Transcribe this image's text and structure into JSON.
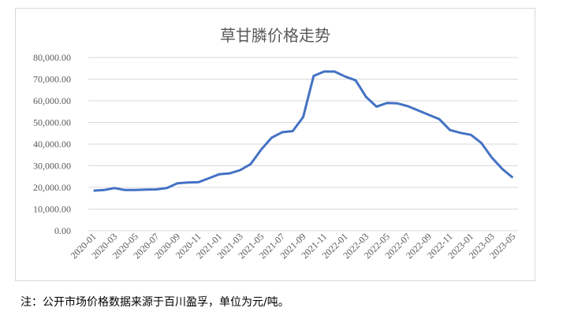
{
  "chart_data": {
    "type": "line",
    "title": "草甘膦价格走势",
    "xlabel": "",
    "ylabel": "",
    "ylim": [
      0,
      80000
    ],
    "yticks": [
      "0.00",
      "10,000.00",
      "20,000.00",
      "30,000.00",
      "40,000.00",
      "50,000.00",
      "60,000.00",
      "70,000.00",
      "80,000.00"
    ],
    "ytick_values": [
      0,
      10000,
      20000,
      30000,
      40000,
      50000,
      60000,
      70000,
      80000
    ],
    "xtick_labels": [
      "2020-01",
      "2020-03",
      "2020-05",
      "2020-07",
      "2020-09",
      "2020-11",
      "2021-01",
      "2021-03",
      "2021-05",
      "2021-07",
      "2021-09",
      "2021-11",
      "2022-01",
      "2022-03",
      "2022-05",
      "2022-07",
      "2022-09",
      "2022-11",
      "2023-01",
      "2023-03",
      "2023-05"
    ],
    "grid": true,
    "legend": "none",
    "line_color": "#4472C4",
    "series": [
      {
        "x": [
          "2020-01",
          "2020-02",
          "2020-03",
          "2020-04",
          "2020-05",
          "2020-06",
          "2020-07",
          "2020-08",
          "2020-09",
          "2020-10",
          "2020-11",
          "2020-12",
          "2021-01",
          "2021-02",
          "2021-03",
          "2021-04",
          "2021-05",
          "2021-06",
          "2021-07",
          "2021-08",
          "2021-09",
          "2021-10",
          "2021-11",
          "2021-12",
          "2022-01",
          "2022-02",
          "2022-03",
          "2022-04",
          "2022-05",
          "2022-06",
          "2022-07",
          "2022-08",
          "2022-09",
          "2022-10",
          "2022-11",
          "2022-12",
          "2023-01",
          "2023-02",
          "2023-03",
          "2023-04",
          "2023-05"
        ],
        "values": [
          18500,
          18800,
          19700,
          18800,
          18800,
          19000,
          19100,
          19700,
          21900,
          22300,
          22400,
          24200,
          26100,
          26500,
          28000,
          30800,
          37500,
          43000,
          45500,
          46000,
          52500,
          71500,
          73500,
          73500,
          71200,
          69500,
          61800,
          57300,
          59000,
          58800,
          57500,
          55500,
          53500,
          51500,
          46500,
          45200,
          44300,
          40500,
          33800,
          28500,
          24500
        ]
      }
    ]
  },
  "footnote": "注：公开市场价格数据来源于百川盈孚，单位为元/吨。"
}
